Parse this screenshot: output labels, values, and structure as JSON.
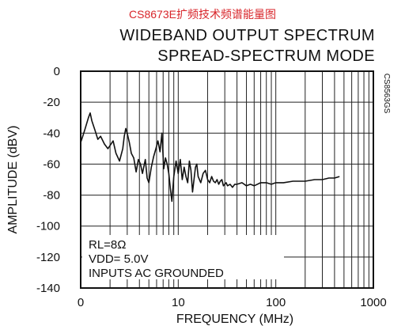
{
  "header": {
    "top_title": "CS8673E扩频技术频谱能量图"
  },
  "chart_data": {
    "type": "line",
    "title": "WIDEBAND OUTPUT SPECTRUM",
    "subtitle": "SPREAD-SPECTRUM MODE",
    "xlabel": "FREQUENCY (MHz)",
    "ylabel": "AMPLITUDE (dBV)",
    "x_scale": "log",
    "xlim": [
      1,
      1000
    ],
    "ylim": [
      -140,
      0
    ],
    "grid": true,
    "x_ticks": [
      "0",
      "10",
      "100",
      "1000"
    ],
    "y_ticks": [
      "0",
      "-20",
      "-40",
      "-60",
      "-80",
      "-100",
      "-120",
      "-140"
    ],
    "annotations": [
      "RL=8Ω",
      "VDD= 5.0V",
      "INPUTS AC GROUNDED"
    ],
    "figure_code": "CS8563GS",
    "series": [
      {
        "x": [
          1.0,
          1.05,
          1.1,
          1.2,
          1.25,
          1.3,
          1.4,
          1.5,
          1.6,
          1.75,
          1.9,
          2.0,
          2.15,
          2.3,
          2.5,
          2.7,
          2.8,
          2.9,
          3.0,
          3.15,
          3.3,
          3.5,
          3.7,
          3.9,
          4.1,
          4.3,
          4.6,
          4.8,
          5.0,
          5.3,
          5.6,
          5.9,
          6.2,
          6.5,
          6.8,
          7.1,
          7.4,
          7.7,
          8.0,
          8.3,
          8.6,
          9.0,
          9.5,
          10.0,
          10.5,
          11.0,
          11.5,
          12.0,
          12.5,
          13.0,
          13.5,
          14.0,
          15.0,
          15.5,
          16.0,
          17.0,
          18.0,
          19.0,
          20.0,
          21.0,
          22.0,
          23.0,
          24.0,
          25.0,
          26.0,
          27.0,
          28.0,
          29.0,
          30.0,
          31.0,
          32.0,
          34.0,
          36.0,
          38.0,
          40.0,
          45.0,
          50.0,
          55.0,
          60.0,
          70.0,
          80.0,
          90.0,
          100.0,
          120.0,
          150.0,
          200.0,
          250.0,
          300.0,
          350.0,
          400.0,
          450.0
        ],
        "y": [
          -46,
          -42,
          -38,
          -30,
          -27,
          -32,
          -38,
          -44,
          -42,
          -47,
          -50,
          -48,
          -45,
          -53,
          -58,
          -50,
          -42,
          -37,
          -40,
          -46,
          -53,
          -56,
          -65,
          -57,
          -60,
          -66,
          -57,
          -69,
          -72,
          -62,
          -55,
          -50,
          -45,
          -52,
          -40,
          -63,
          -56,
          -60,
          -66,
          -76,
          -84,
          -68,
          -58,
          -66,
          -57,
          -70,
          -62,
          -68,
          -72,
          -58,
          -64,
          -78,
          -62,
          -60,
          -68,
          -72,
          -66,
          -64,
          -70,
          -72,
          -68,
          -71,
          -72,
          -70,
          -73,
          -71,
          -70,
          -74,
          -73,
          -72,
          -74,
          -73,
          -75,
          -73,
          -73,
          -72,
          -74,
          -73,
          -74,
          -72,
          -72,
          -73,
          -72,
          -72,
          -71,
          -71,
          -70,
          -70,
          -69,
          -69,
          -68
        ]
      }
    ]
  }
}
